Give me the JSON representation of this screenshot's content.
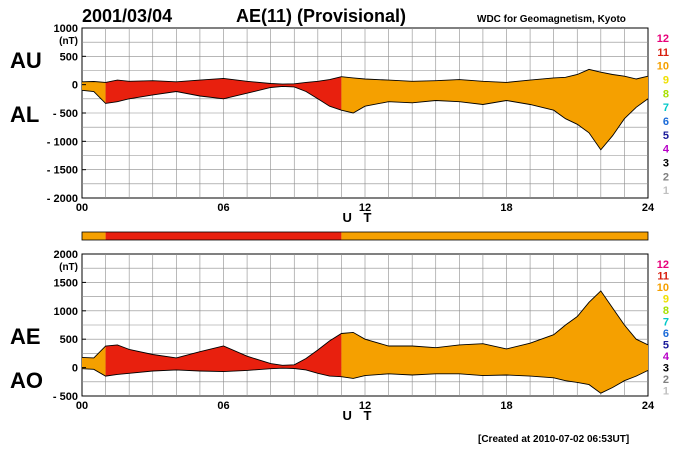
{
  "header": {
    "date": "2001/03/04",
    "title": "AE(11) (Provisional)",
    "source": "WDC for Geomagnetism, Kyoto",
    "created": "[Created at 2010-07-02 06:53UT]"
  },
  "station_scale": {
    "labels": [
      "12",
      "11",
      "10",
      "9",
      "8",
      "7",
      "6",
      "5",
      "4",
      "3",
      "2",
      "1"
    ],
    "colors": [
      "#e8007a",
      "#d81e0e",
      "#f5a000",
      "#f0e000",
      "#a8e000",
      "#00c8c8",
      "#1a6ad8",
      "#1a1a9a",
      "#b800c8",
      "#000000",
      "#808080",
      "#c0c0c0"
    ]
  },
  "colors": {
    "station_10": "#f5a000",
    "station_11": "#e8200e",
    "grid": "#8c8c8c"
  },
  "chart_data": [
    {
      "type": "area",
      "panel": "AU/AL",
      "labels": [
        "AU",
        "AL"
      ],
      "unit_label": "(nT)",
      "xlabel": "U T",
      "x_ticks": [
        "00",
        "06",
        "12",
        "18",
        "24"
      ],
      "x_range": [
        0,
        24
      ],
      "ylim": [
        -2000,
        1000
      ],
      "y_ticks": [
        "1000",
        "500",
        "0",
        "- 500",
        "- 1000",
        "- 1500",
        "- 2000"
      ],
      "grid": true,
      "x": [
        0,
        0.5,
        1,
        1.5,
        2,
        3,
        4,
        5,
        6,
        7,
        8,
        8.5,
        9,
        9.5,
        10,
        10.5,
        11,
        11.5,
        12,
        13,
        14,
        15,
        16,
        17,
        18,
        19,
        20,
        20.5,
        21,
        21.5,
        22,
        22.5,
        23,
        23.5,
        24
      ],
      "series": [
        {
          "name": "AU",
          "values": [
            50,
            55,
            40,
            80,
            60,
            70,
            50,
            80,
            110,
            60,
            20,
            10,
            15,
            40,
            60,
            90,
            140,
            120,
            100,
            80,
            60,
            70,
            90,
            60,
            40,
            80,
            120,
            130,
            180,
            270,
            220,
            180,
            150,
            100,
            150
          ]
        },
        {
          "name": "AL",
          "values": [
            -100,
            -120,
            -330,
            -300,
            -250,
            -180,
            -120,
            -200,
            -250,
            -150,
            -50,
            -30,
            -40,
            -120,
            -250,
            -380,
            -450,
            -500,
            -380,
            -300,
            -320,
            -280,
            -300,
            -350,
            -280,
            -350,
            -450,
            -600,
            -700,
            -850,
            -1150,
            -900,
            -600,
            -400,
            -250
          ]
        }
      ],
      "station_count_bar": [
        {
          "from": 0,
          "to": 1,
          "stations": "10"
        },
        {
          "from": 1,
          "to": 11,
          "stations": "11"
        },
        {
          "from": 11,
          "to": 24,
          "stations": "10"
        }
      ]
    },
    {
      "type": "area",
      "panel": "AE/AO",
      "labels": [
        "AE",
        "AO"
      ],
      "unit_label": "(nT)",
      "xlabel": "U T",
      "x_ticks": [
        "00",
        "06",
        "12",
        "18",
        "24"
      ],
      "x_range": [
        0,
        24
      ],
      "ylim": [
        -500,
        2000
      ],
      "y_ticks": [
        "2000",
        "1500",
        "1000",
        "500",
        "0",
        "- 500"
      ],
      "grid": true,
      "x": [
        0,
        0.5,
        1,
        1.5,
        2,
        3,
        4,
        5,
        6,
        7,
        8,
        8.5,
        9,
        9.5,
        10,
        10.5,
        11,
        11.5,
        12,
        13,
        14,
        15,
        16,
        17,
        18,
        19,
        20,
        20.5,
        21,
        21.5,
        22,
        22.5,
        23,
        23.5,
        24
      ],
      "series": [
        {
          "name": "AE",
          "values": [
            180,
            170,
            380,
            400,
            320,
            230,
            170,
            280,
            380,
            200,
            70,
            40,
            50,
            160,
            310,
            470,
            600,
            620,
            500,
            380,
            380,
            350,
            400,
            420,
            330,
            430,
            580,
            750,
            900,
            1150,
            1350,
            1050,
            750,
            500,
            400
          ]
        },
        {
          "name": "AO",
          "values": [
            -20,
            -30,
            -150,
            -120,
            -100,
            -60,
            -40,
            -60,
            -70,
            -50,
            -20,
            -10,
            -15,
            -40,
            -100,
            -150,
            -160,
            -190,
            -140,
            -110,
            -130,
            -110,
            -110,
            -140,
            -130,
            -150,
            -180,
            -230,
            -260,
            -300,
            -450,
            -350,
            -230,
            -150,
            -50
          ]
        }
      ]
    }
  ]
}
